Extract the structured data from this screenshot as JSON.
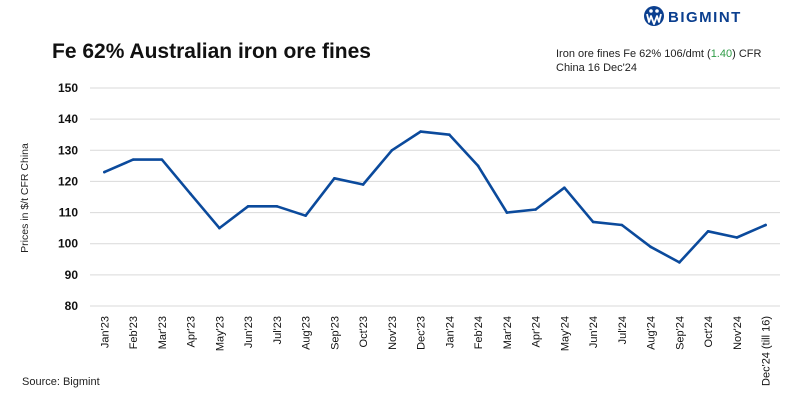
{
  "brand": {
    "name": "BIGMINT",
    "color": "#0b3f8f"
  },
  "chart_data": {
    "type": "line",
    "title": "Fe 62% Australian iron ore fines",
    "annotation": {
      "prefix": "Iron ore fines Fe 62% 106/dmt (",
      "change": "1.40",
      "change_color": "#2e9b46",
      "suffix": ") CFR",
      "line2": "China 16 Dec'24"
    },
    "ylabel": "Prices in $/t CFR China",
    "xlabel": "",
    "ylim": [
      80,
      150
    ],
    "yticks": [
      80,
      90,
      100,
      110,
      120,
      130,
      140,
      150
    ],
    "grid": true,
    "series": [
      {
        "name": "Fe 62% Australian iron ore fines",
        "color": "#0b4a9c",
        "values": [
          123,
          127,
          127,
          116,
          105,
          112,
          112,
          109,
          121,
          119,
          130,
          136,
          135,
          125,
          110,
          111,
          118,
          107,
          106,
          99,
          94,
          104,
          102,
          106
        ]
      }
    ],
    "categories": [
      "Jan'23",
      "Feb'23",
      "Mar'23",
      "Apr'23",
      "May'23",
      "Jun'23",
      "Jul'23",
      "Aug'23",
      "Sep'23",
      "Oct'23",
      "Nov'23",
      "Dec'23",
      "Jan'24",
      "Feb'24",
      "Mar'24",
      "Apr'24",
      "May'24",
      "Jun'24",
      "Jul'24",
      "Aug'24",
      "Sep'24",
      "Oct'24",
      "Nov'24",
      "Dec'24 (till 16)"
    ]
  },
  "source": "Source: Bigmint"
}
